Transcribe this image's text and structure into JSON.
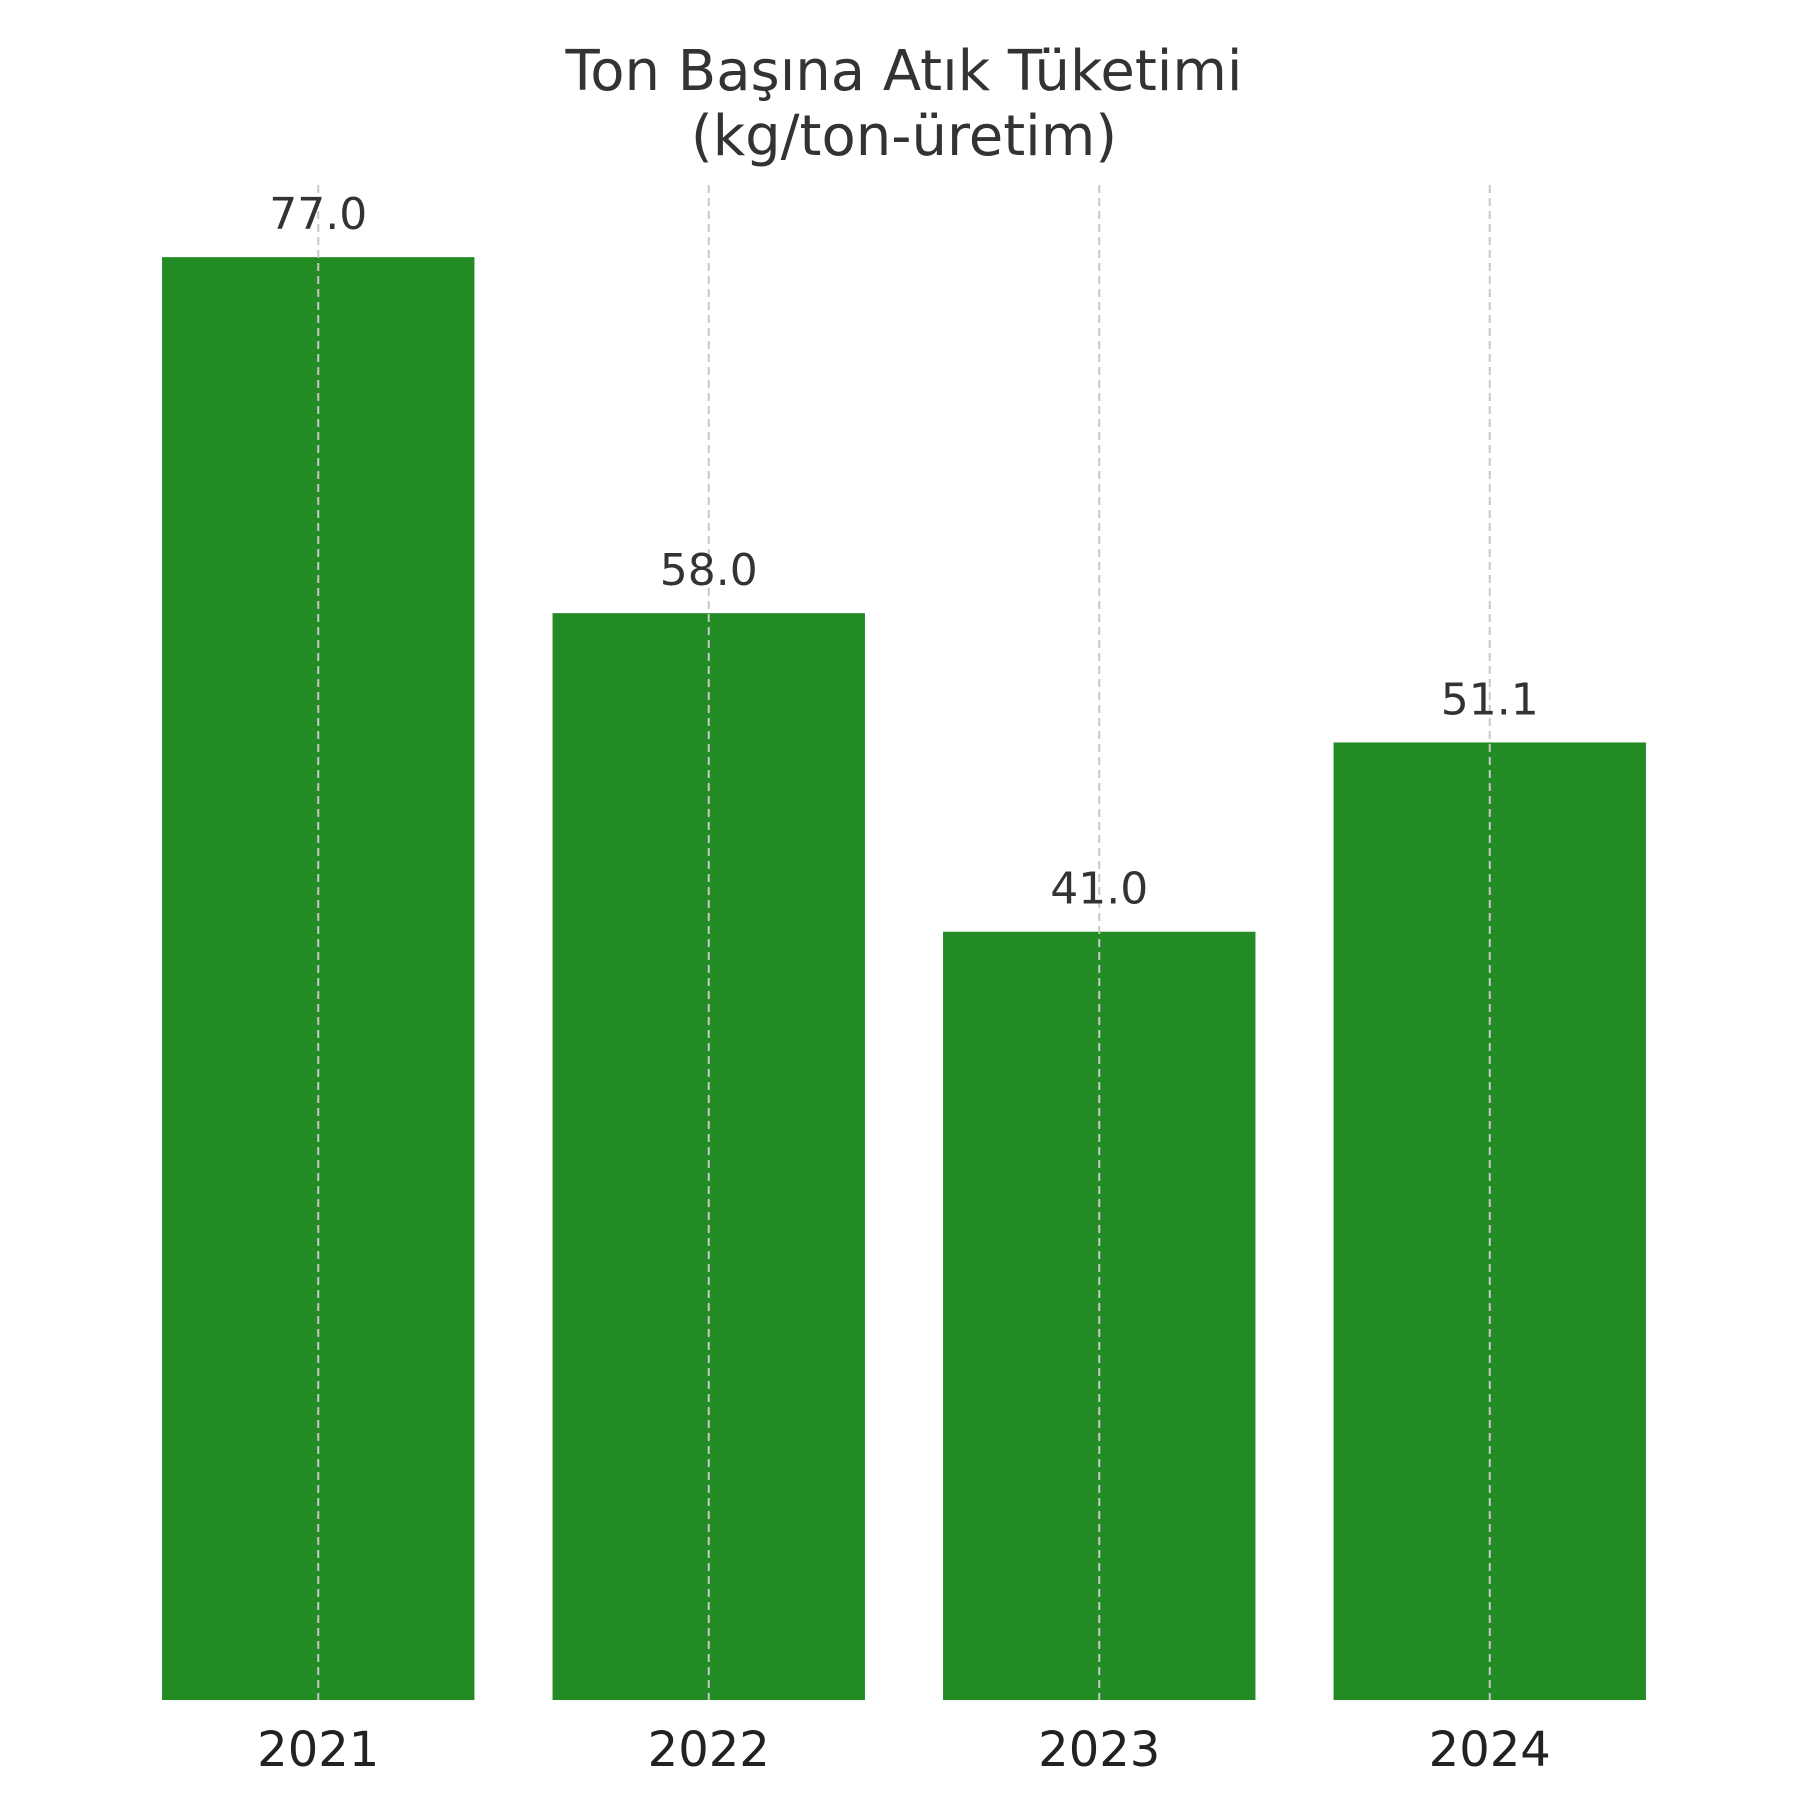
{
  "chart_data": {
    "type": "bar",
    "title": "Ton Başına Atık Tüketimi",
    "subtitle": "(kg/ton-üretim)",
    "categories": [
      "2021",
      "2022",
      "2023",
      "2024"
    ],
    "values": [
      77.0,
      58.0,
      41.0,
      51.1
    ],
    "value_labels": [
      "77.0",
      "58.0",
      "41.0",
      "51.1"
    ],
    "xlabel": "",
    "ylabel": "",
    "ylim": [
      0,
      80.85
    ],
    "grid": "vertical dashed",
    "legend": "none",
    "bar_color": "#238b23",
    "grid_color": "#c8c8c8"
  }
}
